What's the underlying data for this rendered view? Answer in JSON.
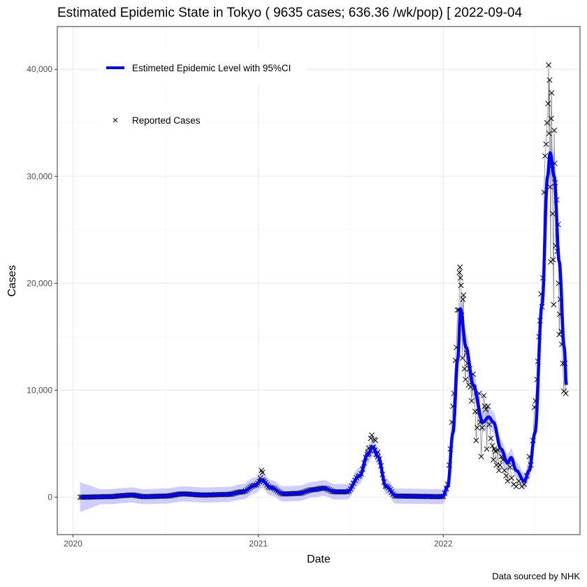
{
  "chart_data": {
    "type": "line",
    "title": "Estimated Epidemic State in Tokyo  ( 9635 cases; 636.36 /wk/pop) [ 2022-09-04",
    "xlabel": "Date",
    "ylabel": "Cases",
    "caption": "Data sourced by NHK",
    "x_ticks": [
      "2020",
      "2021",
      "2022"
    ],
    "y_ticks": [
      "0",
      "10,000",
      "20,000",
      "30,000",
      "40,000"
    ],
    "y_tick_values": [
      0,
      10000,
      20000,
      30000,
      40000
    ],
    "xlim": [
      "2019-12-01",
      "2022-09-28"
    ],
    "ylim": [
      -3500,
      44000
    ],
    "grid": true,
    "legend": {
      "placement": "top-left",
      "entries": [
        "Estimeted Epidemic Level with 95%CI",
        "Reported Cases"
      ]
    },
    "colors": {
      "estimate": "#0000ff",
      "ci": "#c8c8ff",
      "reported": "#000000",
      "connector": "#888888"
    },
    "ci_halfwidth": 700,
    "series": [
      {
        "name": "Estimeted Epidemic Level with 95%CI",
        "points": [
          [
            "2020-01-15",
            0
          ],
          [
            "2020-03-15",
            50
          ],
          [
            "2020-04-10",
            150
          ],
          [
            "2020-04-25",
            200
          ],
          [
            "2020-05-20",
            50
          ],
          [
            "2020-07-01",
            100
          ],
          [
            "2020-08-05",
            300
          ],
          [
            "2020-09-15",
            200
          ],
          [
            "2020-11-01",
            250
          ],
          [
            "2020-12-01",
            500
          ],
          [
            "2020-12-25",
            1100
          ],
          [
            "2021-01-08",
            1600
          ],
          [
            "2021-01-25",
            900
          ],
          [
            "2021-02-20",
            300
          ],
          [
            "2021-03-20",
            350
          ],
          [
            "2021-04-20",
            700
          ],
          [
            "2021-05-10",
            850
          ],
          [
            "2021-06-01",
            500
          ],
          [
            "2021-06-25",
            500
          ],
          [
            "2021-07-20",
            2000
          ],
          [
            "2021-08-05",
            4000
          ],
          [
            "2021-08-15",
            4700
          ],
          [
            "2021-08-25",
            3800
          ],
          [
            "2021-09-10",
            1000
          ],
          [
            "2021-09-30",
            100
          ],
          [
            "2021-12-31",
            50
          ],
          [
            "2022-01-10",
            1000
          ],
          [
            "2022-01-20",
            6000
          ],
          [
            "2022-01-30",
            13000
          ],
          [
            "2022-02-04",
            17600
          ],
          [
            "2022-02-15",
            14000
          ],
          [
            "2022-03-01",
            10500
          ],
          [
            "2022-03-20",
            7000
          ],
          [
            "2022-04-01",
            7500
          ],
          [
            "2022-04-10",
            7000
          ],
          [
            "2022-04-25",
            4500
          ],
          [
            "2022-05-08",
            3200
          ],
          [
            "2022-05-15",
            3700
          ],
          [
            "2022-05-25",
            2500
          ],
          [
            "2022-06-10",
            1500
          ],
          [
            "2022-06-20",
            2500
          ],
          [
            "2022-07-01",
            6000
          ],
          [
            "2022-07-15",
            18000
          ],
          [
            "2022-07-26",
            30000
          ],
          [
            "2022-07-31",
            32200
          ],
          [
            "2022-08-08",
            30000
          ],
          [
            "2022-08-18",
            22000
          ],
          [
            "2022-08-28",
            14000
          ],
          [
            "2022-09-01",
            10500
          ]
        ]
      },
      {
        "name": "Reported Cases",
        "points": [
          [
            "2021-01-07",
            2500
          ],
          [
            "2021-01-09",
            2300
          ],
          [
            "2021-01-05",
            1800
          ],
          [
            "2021-08-05",
            4200
          ],
          [
            "2021-08-07",
            4600
          ],
          [
            "2021-08-11",
            5500
          ],
          [
            "2021-08-13",
            5800
          ],
          [
            "2021-08-18",
            5400
          ],
          [
            "2021-08-20",
            5300
          ],
          [
            "2021-08-25",
            4200
          ],
          [
            "2022-01-10",
            1200
          ],
          [
            "2022-01-13",
            3000
          ],
          [
            "2022-01-15",
            4500
          ],
          [
            "2022-01-18",
            7000
          ],
          [
            "2022-01-20",
            8500
          ],
          [
            "2022-01-22",
            9700
          ],
          [
            "2022-01-25",
            12800
          ],
          [
            "2022-01-27",
            14000
          ],
          [
            "2022-01-29",
            17500
          ],
          [
            "2022-02-01",
            17500
          ],
          [
            "2022-02-02",
            21000
          ],
          [
            "2022-02-03",
            21500
          ],
          [
            "2022-02-04",
            20500
          ],
          [
            "2022-02-05",
            19800
          ],
          [
            "2022-02-06",
            17000
          ],
          [
            "2022-02-08",
            13000
          ],
          [
            "2022-02-09",
            18500
          ],
          [
            "2022-02-10",
            18900
          ],
          [
            "2022-02-12",
            12000
          ],
          [
            "2022-02-14",
            11000
          ],
          [
            "2022-02-16",
            13500
          ],
          [
            "2022-02-18",
            12500
          ],
          [
            "2022-02-20",
            10500
          ],
          [
            "2022-02-22",
            12000
          ],
          [
            "2022-02-24",
            10300
          ],
          [
            "2022-02-26",
            9000
          ],
          [
            "2022-03-01",
            11500
          ],
          [
            "2022-03-03",
            10200
          ],
          [
            "2022-03-05",
            8000
          ],
          [
            "2022-03-07",
            5300
          ],
          [
            "2022-03-09",
            6500
          ],
          [
            "2022-03-11",
            8000
          ],
          [
            "2022-03-13",
            9700
          ],
          [
            "2022-03-15",
            7000
          ],
          [
            "2022-03-17",
            3800
          ],
          [
            "2022-03-19",
            6500
          ],
          [
            "2022-03-22",
            9500
          ],
          [
            "2022-03-24",
            8500
          ],
          [
            "2022-03-26",
            8200
          ],
          [
            "2022-03-28",
            4500
          ],
          [
            "2022-03-30",
            8500
          ],
          [
            "2022-04-02",
            6800
          ],
          [
            "2022-04-05",
            5500
          ],
          [
            "2022-04-08",
            4800
          ],
          [
            "2022-04-10",
            3500
          ],
          [
            "2022-04-12",
            4500
          ],
          [
            "2022-04-14",
            4300
          ],
          [
            "2022-04-16",
            3000
          ],
          [
            "2022-04-19",
            4400
          ],
          [
            "2022-04-21",
            2500
          ],
          [
            "2022-04-23",
            3000
          ],
          [
            "2022-04-26",
            3800
          ],
          [
            "2022-04-29",
            3500
          ],
          [
            "2022-05-02",
            2500
          ],
          [
            "2022-05-05",
            2000
          ],
          [
            "2022-05-08",
            1500
          ],
          [
            "2022-05-10",
            3300
          ],
          [
            "2022-05-13",
            2800
          ],
          [
            "2022-05-16",
            1800
          ],
          [
            "2022-05-20",
            1200
          ],
          [
            "2022-05-25",
            1000
          ],
          [
            "2022-05-30",
            1500
          ],
          [
            "2022-06-05",
            1000
          ],
          [
            "2022-06-10",
            1200
          ],
          [
            "2022-06-15",
            2000
          ],
          [
            "2022-06-20",
            3800
          ],
          [
            "2022-06-23",
            3000
          ],
          [
            "2022-06-27",
            5300
          ],
          [
            "2022-06-30",
            8400
          ],
          [
            "2022-07-02",
            9000
          ],
          [
            "2022-07-05",
            11000
          ],
          [
            "2022-07-07",
            12700
          ],
          [
            "2022-07-09",
            15000
          ],
          [
            "2022-07-11",
            16500
          ],
          [
            "2022-07-13",
            19000
          ],
          [
            "2022-07-15",
            17800
          ],
          [
            "2022-07-17",
            20500
          ],
          [
            "2022-07-19",
            28500
          ],
          [
            "2022-07-21",
            31900
          ],
          [
            "2022-07-23",
            33000
          ],
          [
            "2022-07-25",
            35000
          ],
          [
            "2022-07-27",
            36800
          ],
          [
            "2022-07-28",
            40400
          ],
          [
            "2022-07-29",
            34000
          ],
          [
            "2022-07-30",
            39000
          ],
          [
            "2022-07-31",
            29000
          ],
          [
            "2022-08-01",
            22000
          ],
          [
            "2022-08-02",
            35400
          ],
          [
            "2022-08-03",
            37800
          ],
          [
            "2022-08-04",
            31000
          ],
          [
            "2022-08-05",
            26500
          ],
          [
            "2022-08-06",
            22200
          ],
          [
            "2022-08-07",
            18000
          ],
          [
            "2022-08-08",
            34300
          ],
          [
            "2022-08-09",
            31200
          ],
          [
            "2022-08-10",
            29400
          ],
          [
            "2022-08-11",
            23500
          ],
          [
            "2022-08-13",
            27800
          ],
          [
            "2022-08-14",
            23000
          ],
          [
            "2022-08-16",
            25500
          ],
          [
            "2022-08-17",
            20000
          ],
          [
            "2022-08-18",
            15200
          ],
          [
            "2022-08-19",
            17100
          ],
          [
            "2022-08-20",
            18500
          ],
          [
            "2022-08-22",
            15500
          ],
          [
            "2022-08-23",
            14300
          ],
          [
            "2022-08-25",
            12500
          ],
          [
            "2022-08-27",
            9900
          ],
          [
            "2022-08-29",
            12500
          ],
          [
            "2022-08-31",
            9700
          ]
        ]
      }
    ]
  }
}
